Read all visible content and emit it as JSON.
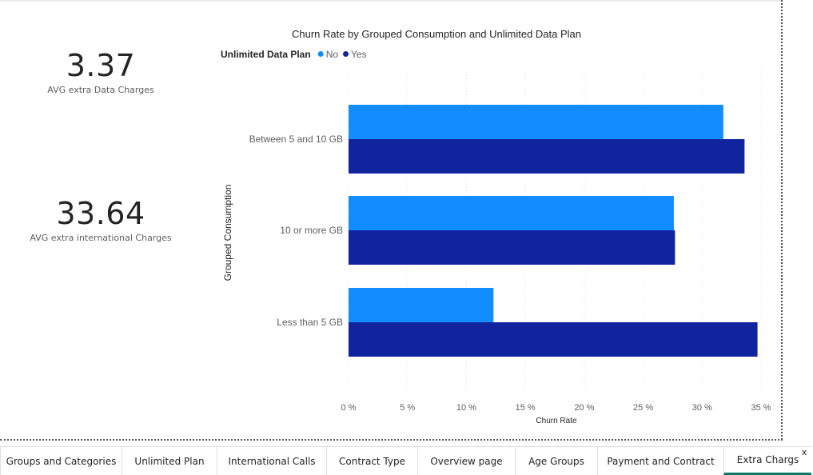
{
  "cards": [
    {
      "value": "3.37",
      "label": "AVG extra Data Charges"
    },
    {
      "value": "33.64",
      "label": "AVG extra international Charges"
    }
  ],
  "chart_data": {
    "type": "bar",
    "orientation": "horizontal",
    "title": "Churn Rate by Grouped Consumption and Unlimited Data Plan",
    "legend_title": "Unlimited Data Plan",
    "legend_position": "top-left",
    "categories": [
      "Between 5 and 10 GB",
      "10 or more GB",
      "Less than 5 GB"
    ],
    "series": [
      {
        "name": "No",
        "color": "#118dff",
        "values": [
          31.8,
          27.6,
          12.3
        ]
      },
      {
        "name": "Yes",
        "color": "#12239e",
        "values": [
          33.6,
          27.7,
          34.7
        ]
      }
    ],
    "xlabel": "Churn Rate",
    "ylabel": "Grouped Consumption",
    "xlim": [
      0,
      35
    ],
    "xticks": [
      "0 %",
      "5 %",
      "10 %",
      "15 %",
      "20 %",
      "25 %",
      "30 %",
      "35 %"
    ],
    "xtick_values": [
      0,
      5,
      10,
      15,
      20,
      25,
      30,
      35
    ],
    "grid": "vertical dotted"
  },
  "tabs": [
    {
      "label": "Groups and Categories",
      "active": false
    },
    {
      "label": "Unlimited Plan",
      "active": false
    },
    {
      "label": "International Calls",
      "active": false
    },
    {
      "label": "Contract Type",
      "active": false
    },
    {
      "label": "Overview page",
      "active": false
    },
    {
      "label": "Age Groups",
      "active": false
    },
    {
      "label": "Payment and Contract",
      "active": false
    },
    {
      "label": "Extra Chargs",
      "active": true
    }
  ],
  "tab_close_label": "x"
}
